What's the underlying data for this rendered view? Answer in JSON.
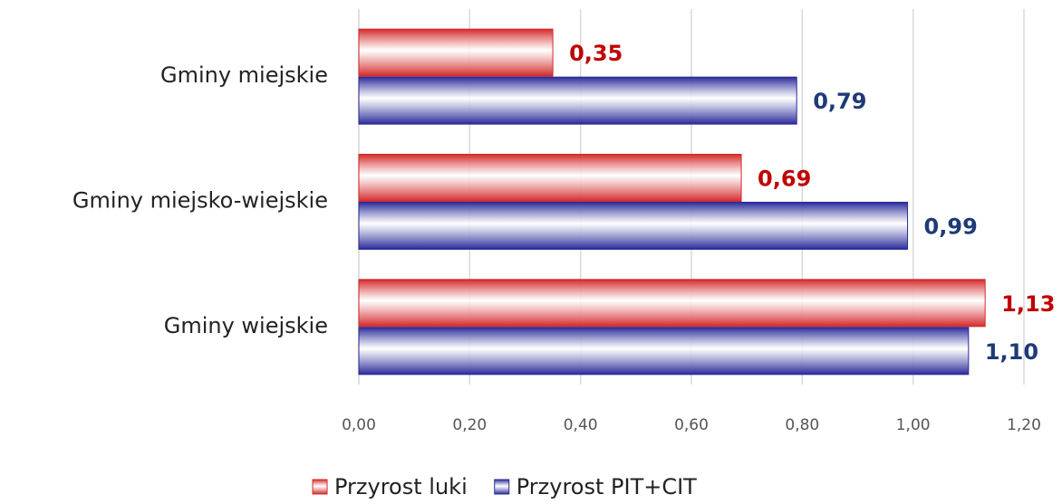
{
  "chart_data": {
    "type": "bar",
    "orientation": "horizontal",
    "categories": [
      "Gminy miejskie",
      "Gminy miejsko-wiejskie",
      "Gminy wiejskie"
    ],
    "series": [
      {
        "name": "Przyrost luki",
        "color": "#d42a2a",
        "label_color": "#c00000",
        "values": [
          0.35,
          0.69,
          1.13
        ],
        "value_labels": [
          "0,35",
          "0,69",
          "1,13"
        ]
      },
      {
        "name": "Przyrost PIT+CIT",
        "color": "#2a2a9a",
        "label_color": "#1f3a78",
        "values": [
          0.79,
          0.99,
          1.1
        ],
        "value_labels": [
          "0,79",
          "0,99",
          "1,10"
        ]
      }
    ],
    "xlim": [
      0,
      1.2
    ],
    "xticks": [
      {
        "value": 0,
        "label": "0,00"
      },
      {
        "value": 0.2,
        "label": "0,20"
      },
      {
        "value": 0.4,
        "label": "0,40"
      },
      {
        "value": 0.6,
        "label": "0,60"
      },
      {
        "value": 0.8,
        "label": "0,80"
      },
      {
        "value": 1.0,
        "label": "1,00"
      },
      {
        "value": 1.2,
        "label": "1,20"
      }
    ],
    "grid": true,
    "legend": "bottom"
  }
}
